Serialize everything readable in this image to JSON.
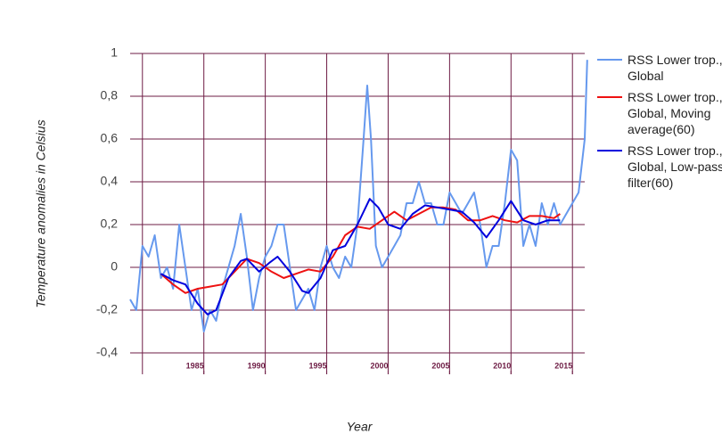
{
  "chart_data": {
    "type": "line",
    "y_label": "Temperature anomalies in Celsius",
    "x_label": "Year",
    "xlim": [
      1979,
      2016
    ],
    "ylim": [
      -0.5,
      1
    ],
    "xticks": [
      1985,
      1990,
      1995,
      2000,
      2005,
      2010,
      2015
    ],
    "xgrid": [
      1980,
      1985,
      1990,
      1995,
      2000,
      2005,
      2010,
      2015
    ],
    "yticks": [
      {
        "value": -0.4,
        "label": "-0,4"
      },
      {
        "value": -0.2,
        "label": "-0,2"
      },
      0,
      {
        "value": 0.2,
        "label": "0,2"
      },
      {
        "value": 0.4,
        "label": "0,4"
      },
      {
        "value": 0.6,
        "label": "0,6"
      },
      {
        "value": 0.8,
        "label": "0,8"
      },
      1
    ],
    "grid": true,
    "grid_color": "#6e1d45",
    "legend": "right",
    "series": [
      {
        "name": "RSS Lower trop., Global",
        "color": "#6699ee",
        "width": 2,
        "x": [
          1979.0,
          1979.5,
          1980.0,
          1980.5,
          1981.0,
          1981.5,
          1982.0,
          1982.5,
          1983.0,
          1983.5,
          1984.0,
          1984.5,
          1985.0,
          1985.5,
          1986.0,
          1986.5,
          1987.0,
          1987.5,
          1988.0,
          1988.5,
          1989.0,
          1989.5,
          1990.0,
          1990.5,
          1991.0,
          1991.5,
          1992.0,
          1992.5,
          1993.0,
          1993.5,
          1994.0,
          1994.5,
          1995.0,
          1995.5,
          1996.0,
          1996.5,
          1997.0,
          1997.5,
          1998.0,
          1998.3,
          1998.6,
          1999.0,
          1999.5,
          2000.0,
          2000.5,
          2001.0,
          2001.5,
          2002.0,
          2002.5,
          2003.0,
          2003.5,
          2004.0,
          2004.5,
          2005.0,
          2005.5,
          2006.0,
          2006.5,
          2007.0,
          2007.5,
          2008.0,
          2008.5,
          2009.0,
          2009.5,
          2010.0,
          2010.5,
          2011.0,
          2011.5,
          2012.0,
          2012.5,
          2013.0,
          2013.5,
          2014.0,
          2014.5,
          2015.0,
          2015.5,
          2016.0,
          2016.2
        ],
        "values": [
          -0.15,
          -0.2,
          0.1,
          0.05,
          0.15,
          -0.05,
          0.0,
          -0.1,
          0.2,
          0.0,
          -0.2,
          -0.1,
          -0.3,
          -0.2,
          -0.25,
          -0.1,
          0.0,
          0.1,
          0.25,
          0.05,
          -0.2,
          -0.05,
          0.05,
          0.1,
          0.2,
          0.2,
          0.0,
          -0.2,
          -0.15,
          -0.1,
          -0.2,
          0.0,
          0.1,
          0.0,
          -0.05,
          0.05,
          0.0,
          0.2,
          0.6,
          0.85,
          0.6,
          0.1,
          0.0,
          0.05,
          0.1,
          0.15,
          0.3,
          0.3,
          0.4,
          0.3,
          0.3,
          0.2,
          0.2,
          0.35,
          0.3,
          0.25,
          0.3,
          0.35,
          0.2,
          0.0,
          0.1,
          0.1,
          0.3,
          0.55,
          0.5,
          0.1,
          0.2,
          0.1,
          0.3,
          0.2,
          0.3,
          0.2,
          0.25,
          0.3,
          0.35,
          0.6,
          0.97
        ]
      },
      {
        "name": "RSS Lower trop., Global, Moving average(60)",
        "color": "#ee1111",
        "width": 2,
        "x": [
          1981.5,
          1982.5,
          1983.5,
          1984.5,
          1985.5,
          1986.5,
          1987.5,
          1988.5,
          1989.5,
          1990.5,
          1991.5,
          1992.5,
          1993.5,
          1994.5,
          1995.5,
          1996.5,
          1997.5,
          1998.5,
          1999.5,
          2000.5,
          2001.5,
          2002.5,
          2003.5,
          2004.5,
          2005.5,
          2006.5,
          2007.5,
          2008.5,
          2009.5,
          2010.5,
          2011.5,
          2012.5,
          2013.5,
          2014.0
        ],
        "values": [
          -0.03,
          -0.08,
          -0.12,
          -0.1,
          -0.09,
          -0.08,
          -0.02,
          0.04,
          0.02,
          -0.02,
          -0.05,
          -0.03,
          -0.01,
          -0.02,
          0.05,
          0.15,
          0.19,
          0.18,
          0.22,
          0.26,
          0.22,
          0.25,
          0.28,
          0.28,
          0.27,
          0.22,
          0.22,
          0.24,
          0.22,
          0.21,
          0.24,
          0.24,
          0.23,
          0.25
        ]
      },
      {
        "name": "RSS Lower trop., Global, Low-pass filter(60)",
        "color": "#0000dd",
        "width": 2,
        "x": [
          1981.5,
          1982.5,
          1983.5,
          1984.5,
          1985.3,
          1986.0,
          1987.0,
          1988.0,
          1988.5,
          1989.5,
          1990.3,
          1991.0,
          1992.0,
          1993.0,
          1993.5,
          1994.5,
          1995.5,
          1996.5,
          1997.5,
          1998.5,
          1999.2,
          2000.0,
          2001.0,
          2002.0,
          2003.0,
          2004.0,
          2005.0,
          2006.0,
          2007.0,
          2008.0,
          2009.0,
          2010.0,
          2011.0,
          2012.0,
          2013.0,
          2014.0
        ],
        "values": [
          -0.03,
          -0.06,
          -0.08,
          -0.17,
          -0.22,
          -0.2,
          -0.05,
          0.03,
          0.04,
          -0.02,
          0.02,
          0.05,
          -0.02,
          -0.11,
          -0.12,
          -0.05,
          0.08,
          0.1,
          0.2,
          0.32,
          0.28,
          0.2,
          0.18,
          0.25,
          0.29,
          0.28,
          0.27,
          0.26,
          0.21,
          0.14,
          0.22,
          0.31,
          0.22,
          0.2,
          0.22,
          0.22
        ]
      }
    ]
  }
}
